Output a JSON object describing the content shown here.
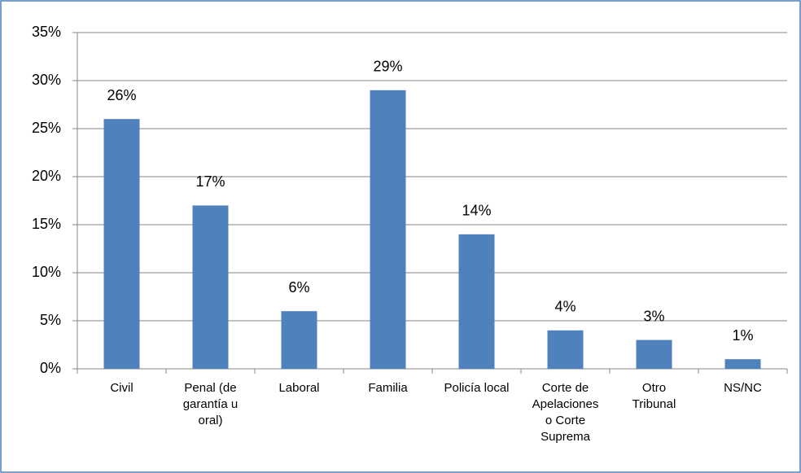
{
  "chart_data": {
    "type": "bar",
    "categories": [
      "Civil",
      "Penal (de garantía u oral)",
      "Laboral",
      "Familia",
      "Policía local",
      "Corte de Apelaciones o Corte Suprema",
      "Otro Tribunal",
      "NS/NC"
    ],
    "values": [
      26,
      17,
      6,
      29,
      14,
      4,
      3,
      1
    ],
    "value_labels": [
      "26%",
      "17%",
      "6%",
      "29%",
      "14%",
      "4%",
      "3%",
      "1%"
    ],
    "color": "#4f81bd",
    "ylim": [
      0,
      35
    ],
    "yticks": [
      {
        "value": 0,
        "label": "0%"
      },
      {
        "value": 5,
        "label": "5%"
      },
      {
        "value": 10,
        "label": "10%"
      },
      {
        "value": 15,
        "label": "15%"
      },
      {
        "value": 20,
        "label": "20%"
      },
      {
        "value": 25,
        "label": "25%"
      },
      {
        "value": 30,
        "label": "30%"
      },
      {
        "value": 35,
        "label": "35%"
      }
    ],
    "grid": true
  }
}
